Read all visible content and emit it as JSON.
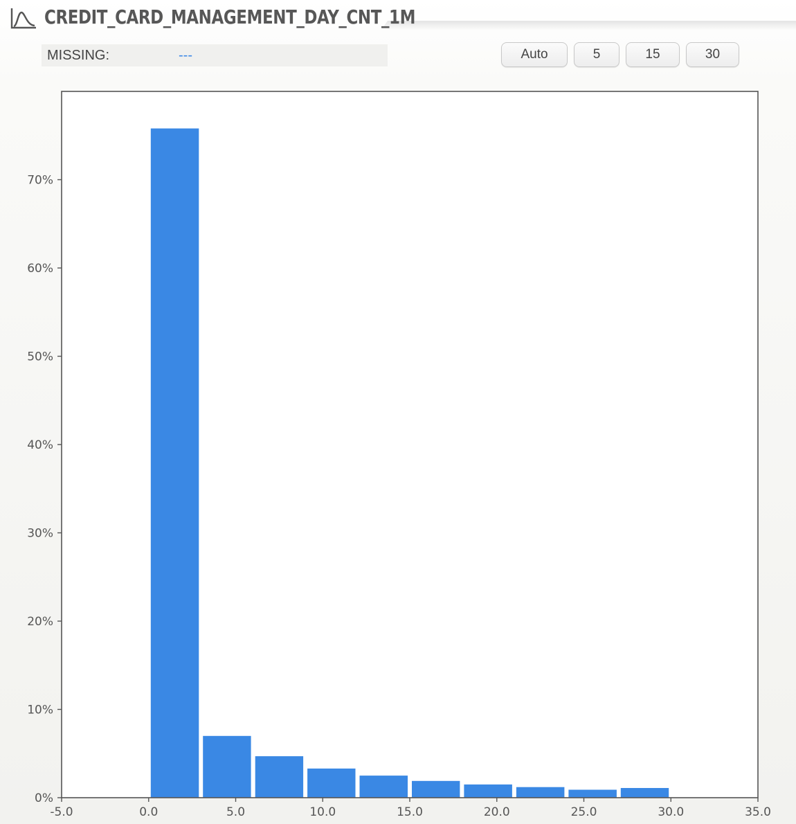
{
  "header": {
    "title": "CREDIT_CARD_MANAGEMENT_DAY_CNT_1M",
    "icon": "distribution-curve-icon"
  },
  "missing": {
    "label": "MISSING:",
    "value": "---"
  },
  "bin_buttons": [
    {
      "label": "Auto"
    },
    {
      "label": "5"
    },
    {
      "label": "15"
    },
    {
      "label": "30"
    }
  ],
  "colors": {
    "bar": "#3a88e4",
    "axis": "#555555",
    "title": "#575757",
    "missing_value": "#3a86e6"
  },
  "chart_data": {
    "type": "bar",
    "title": "",
    "xlabel": "",
    "ylabel": "",
    "xlim": [
      -5.0,
      35.0
    ],
    "ylim": [
      0,
      80
    ],
    "y_unit": "%",
    "xticks": [
      -5.0,
      0.0,
      5.0,
      10.0,
      15.0,
      20.0,
      25.0,
      30.0,
      35.0
    ],
    "xtick_labels": [
      "-5.0",
      "0.0",
      "5.0",
      "10.0",
      "15.0",
      "20.0",
      "25.0",
      "30.0",
      "35.0"
    ],
    "yticks": [
      0,
      10,
      20,
      30,
      40,
      50,
      60,
      70
    ],
    "ytick_labels": [
      "0%",
      "10%",
      "20%",
      "30%",
      "40%",
      "50%",
      "60%",
      "70%"
    ],
    "grid": false,
    "legend": "none",
    "bins": [
      {
        "x0": 0.0,
        "x1": 3.0,
        "value": 75.8
      },
      {
        "x0": 3.0,
        "x1": 6.0,
        "value": 7.0
      },
      {
        "x0": 6.0,
        "x1": 9.0,
        "value": 4.7
      },
      {
        "x0": 9.0,
        "x1": 12.0,
        "value": 3.3
      },
      {
        "x0": 12.0,
        "x1": 15.0,
        "value": 2.5
      },
      {
        "x0": 15.0,
        "x1": 18.0,
        "value": 1.9
      },
      {
        "x0": 18.0,
        "x1": 21.0,
        "value": 1.5
      },
      {
        "x0": 21.0,
        "x1": 24.0,
        "value": 1.2
      },
      {
        "x0": 24.0,
        "x1": 27.0,
        "value": 0.9
      },
      {
        "x0": 27.0,
        "x1": 30.0,
        "value": 1.1
      }
    ]
  }
}
